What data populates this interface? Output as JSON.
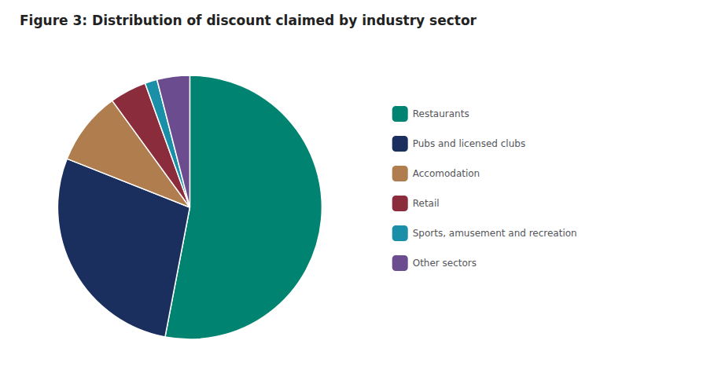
{
  "chart_data": {
    "type": "pie",
    "title": "Figure 3: Distribution of discount claimed by industry sector",
    "categories": [
      "Restaurants",
      "Pubs and licensed clubs",
      "Accomodation",
      "Retail",
      "Sports, amusement and recreation",
      "Other sectors"
    ],
    "values": [
      53,
      28,
      9,
      4.5,
      1.5,
      4
    ],
    "colors": [
      "#008471",
      "#1a2f5e",
      "#b07d4e",
      "#8b2c3c",
      "#1b8fa8",
      "#6b4c8e"
    ],
    "legend": "right"
  }
}
